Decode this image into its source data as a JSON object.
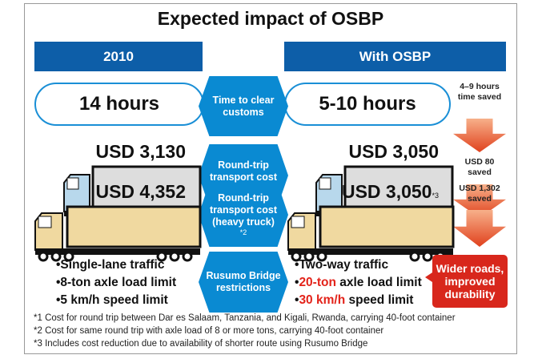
{
  "title": "Expected impact of OSBP",
  "headers": {
    "left": "2010",
    "right": "With OSBP"
  },
  "rows": [
    {
      "label": "Time to clear customs",
      "left": "14 hours",
      "right": "5-10 hours",
      "saving": "4–9 hours time saved"
    },
    {
      "label": "Round-trip transport cost",
      "note": "*1",
      "left": "USD 3,130",
      "right": "USD 3,050",
      "saving": "USD 80 saved"
    },
    {
      "label": "Round-trip transport cost (heavy truck)",
      "note": "*2",
      "left": "USD 4,352",
      "right": "USD 3,050",
      "right_note": "*3",
      "saving": "USD 1,302 saved"
    },
    {
      "label": "Rusumo Bridge restrictions"
    }
  ],
  "bridge": {
    "left": [
      "•Single-lane traffic",
      "•8-ton axle load limit",
      "•5 km/h speed limit"
    ],
    "right": [
      {
        "pre": "•",
        "red": "",
        "rest": "Two-way traffic"
      },
      {
        "pre": "•",
        "red": "20-ton",
        "rest": " axle load limit"
      },
      {
        "pre": "•",
        "red": "30 km/h",
        "rest": " speed limit"
      }
    ],
    "callout": "Wider roads, improved durability"
  },
  "footnotes": [
    "*1 Cost for round trip between Dar es Salaam, Tanzania, and Kigali, Rwanda, carrying 40-foot container",
    "*2 Cost for same round trip with axle load of 8 or more tons, carrying 40-foot container",
    "*3 Includes cost reduction due to availability of shorter route using Rusumo Bridge"
  ],
  "colors": {
    "header": "#0d5ea8",
    "hexagon": "#0a8ad2",
    "highlight": "#e3231a",
    "arrow": "#e0411d",
    "truck_light": "#b8d8ec",
    "truck_heavy": "#f0d9a0"
  }
}
